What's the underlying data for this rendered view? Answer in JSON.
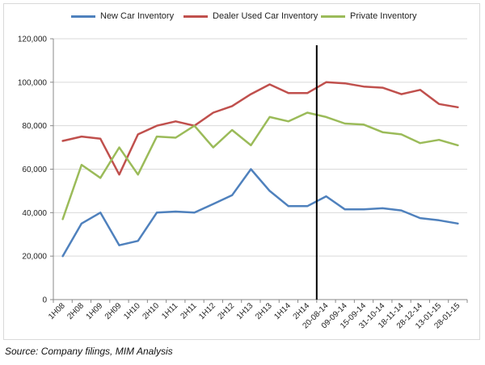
{
  "chart_data": {
    "type": "line",
    "categories": [
      "1H08",
      "2H08",
      "1H09",
      "2H09",
      "1H10",
      "2H10",
      "1H11",
      "2H11",
      "1H12",
      "2H12",
      "1H13",
      "2H13",
      "1H14",
      "2H14",
      "20-08-14",
      "09-09-14",
      "15-09-14",
      "31-10-14",
      "18-11-14",
      "28-12-14",
      "13-01-15",
      "28-01-15"
    ],
    "series": [
      {
        "name": "New Car Inventory",
        "color": "#4f81bd",
        "values": [
          20000,
          35000,
          40000,
          25000,
          27000,
          40000,
          40500,
          40000,
          44000,
          48000,
          60000,
          50000,
          43000,
          43000,
          47500,
          41500,
          41500,
          42000,
          41000,
          37500,
          36500,
          35000
        ]
      },
      {
        "name": "Dealer Used Car Inventory",
        "color": "#c0504d",
        "values": [
          73000,
          75000,
          74000,
          57500,
          76000,
          80000,
          82000,
          80000,
          86000,
          89000,
          94500,
          99000,
          95000,
          95000,
          100000,
          99500,
          98000,
          97500,
          94500,
          96500,
          90000,
          88500
        ]
      },
      {
        "name": "Private Inventory",
        "color": "#9bbb59",
        "values": [
          37000,
          62000,
          56000,
          70000,
          57500,
          75000,
          74500,
          80000,
          70000,
          78000,
          71000,
          84000,
          82000,
          86000,
          84000,
          81000,
          80500,
          77000,
          76000,
          72000,
          73500,
          71000
        ]
      }
    ],
    "yticks": [
      "0",
      "20,000",
      "40,000",
      "60,000",
      "80,000",
      "100,000",
      "120,000"
    ],
    "ylim": [
      0,
      120000
    ],
    "grid": true,
    "legend": "top",
    "marker_line_after_category": "2H14"
  },
  "source": "Source: Company filings, MIM Analysis"
}
